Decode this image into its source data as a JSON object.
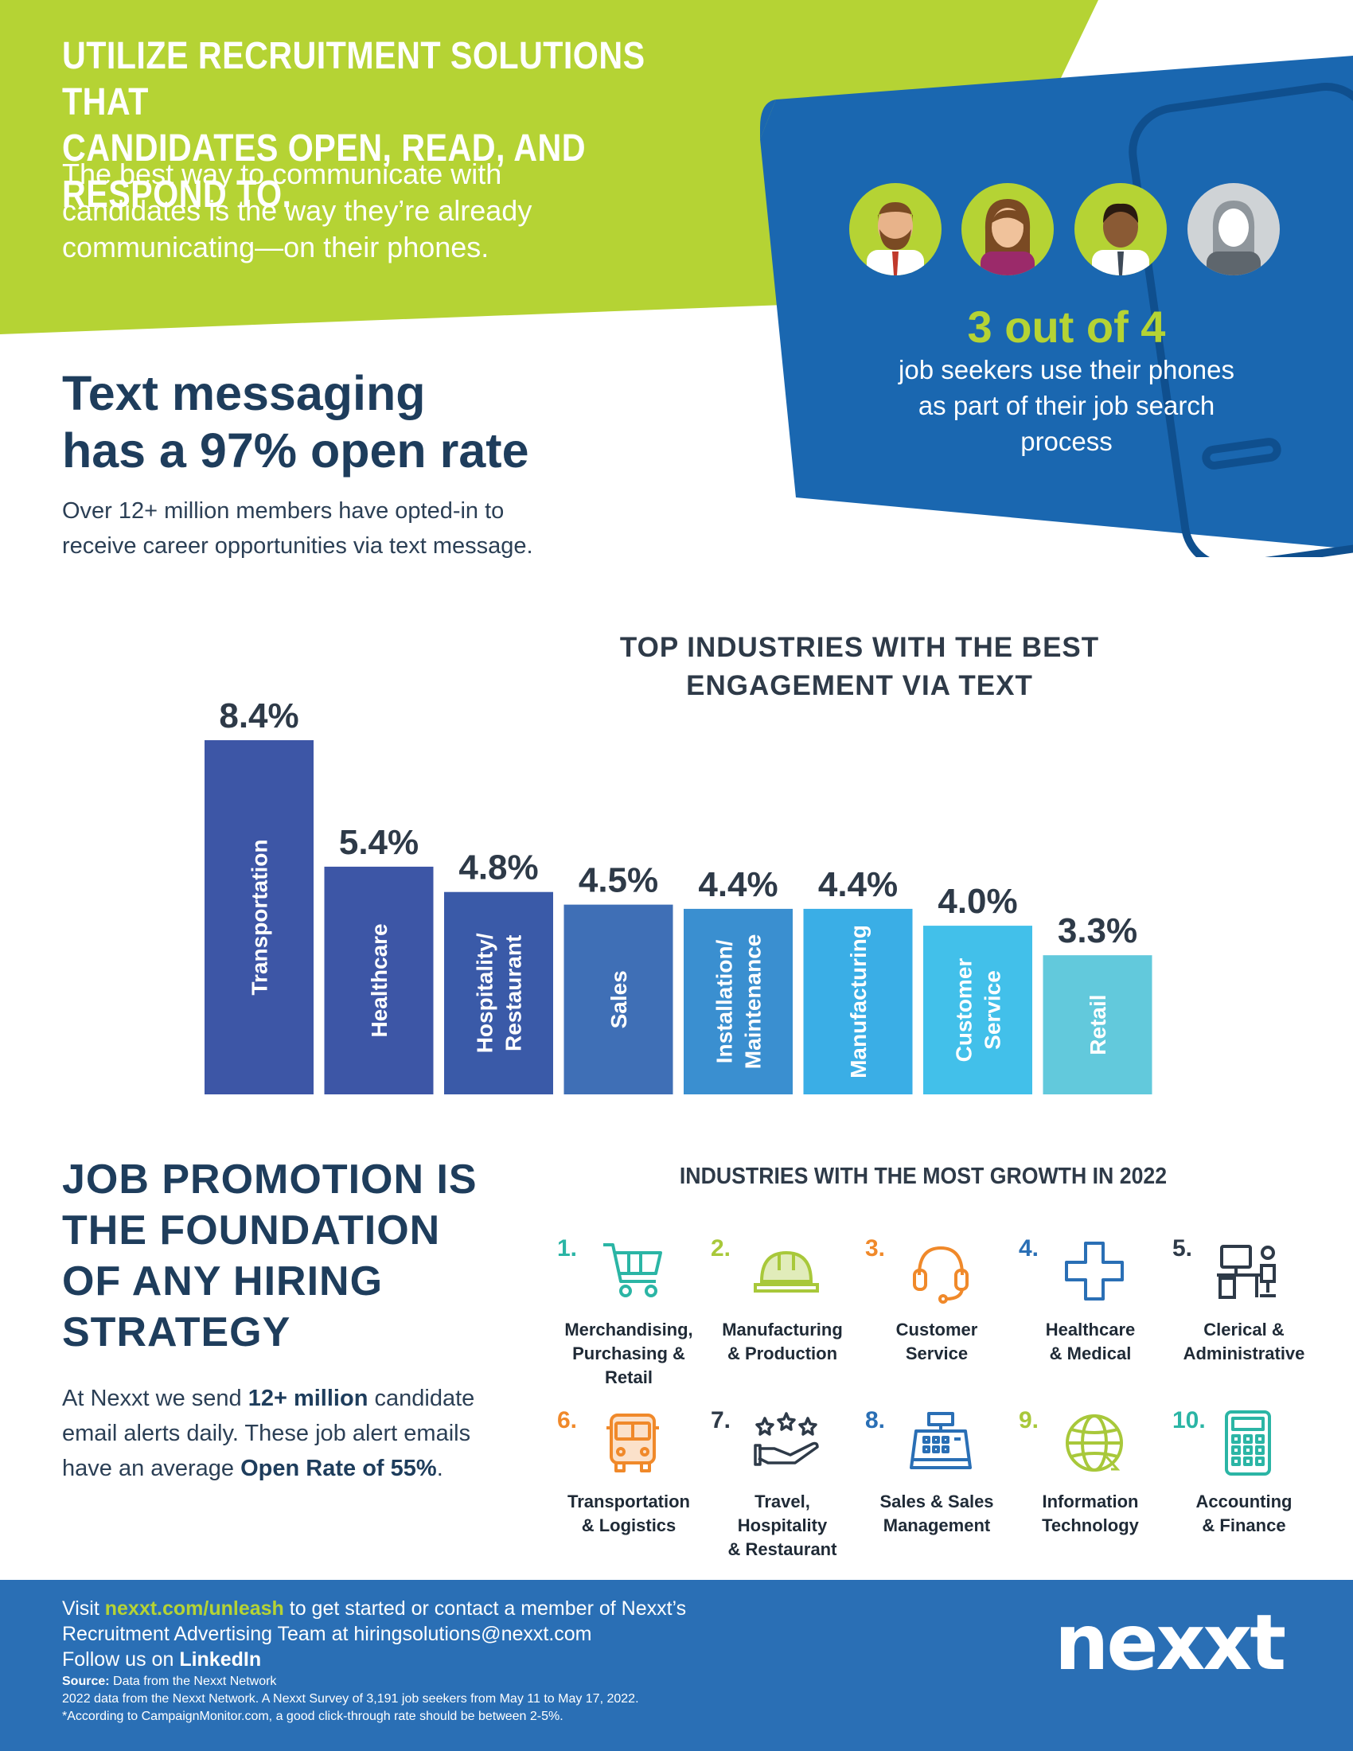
{
  "header": {
    "title_line1": "UTILIZE RECRUITMENT SOLUTIONS THAT",
    "title_line2": "CANDIDATES OPEN, READ, AND RESPOND TO.",
    "subtitle_line1": "The best way to communicate with",
    "subtitle_line2": "candidates is the way they’re already",
    "subtitle_line3": "communicating—on their phones."
  },
  "phone_card": {
    "stat": "3 out of 4",
    "text_line1": "job seekers use their phones",
    "text_line2": "as part of their job search",
    "text_line3": "process"
  },
  "text_section": {
    "heading_line1": "Text messaging",
    "heading_line2": "has a 97% open rate",
    "body_line1": "Over 12+ million members have opted-in to",
    "body_line2": "receive career opportunities via text message."
  },
  "chart_data": {
    "type": "bar",
    "title_line1": "TOP INDUSTRIES WITH THE BEST",
    "title_line2": "ENGAGEMENT VIA TEXT",
    "categories": [
      "Transportation",
      "Healthcare",
      "Hospitality/ Restaurant",
      "Sales",
      "Installation/ Maintenance",
      "Manufacturing",
      "Customer Service",
      "Retail"
    ],
    "category_lines": [
      [
        "Transportation"
      ],
      [
        "Healthcare"
      ],
      [
        "Hospitality/",
        "Restaurant"
      ],
      [
        "Sales"
      ],
      [
        "Installation/",
        "Maintenance"
      ],
      [
        "Manufacturing"
      ],
      [
        "Customer",
        "Service"
      ],
      [
        "Retail"
      ]
    ],
    "values": [
      8.4,
      5.4,
      4.8,
      4.5,
      4.4,
      4.4,
      4.0,
      3.3
    ],
    "value_labels": [
      "8.4%",
      "5.4%",
      "4.8%",
      "4.5%",
      "4.4%",
      "4.4%",
      "4.0%",
      "3.3%"
    ],
    "colors": [
      "#3d56a6",
      "#3d56a6",
      "#3a5aa8",
      "#3f6fb6",
      "#3a8fd0",
      "#3aaee6",
      "#42c0ea",
      "#62c9dc"
    ],
    "ylim": [
      0,
      8.4
    ],
    "grid": false,
    "legend": "none"
  },
  "job_promotion": {
    "heading_line1": "JOB PROMOTION IS",
    "heading_line2": "THE FOUNDATION",
    "heading_line3": "OF ANY HIRING",
    "heading_line4": "STRATEGY",
    "body_pre": "At Nexxt we send",
    "body_bold1": "12+ million",
    "body_mid": "candidate email alerts daily. These job alert emails have an average",
    "body_bold2": "Open Rate of 55%",
    "body_end": "."
  },
  "growth": {
    "title": "INDUSTRIES WITH THE MOST GROWTH IN 2022",
    "items": [
      {
        "num": "1.",
        "lines": [
          "Merchandising,",
          "Purchasing &",
          "Retail"
        ],
        "icon": "shopping-cart-icon",
        "color": "#2bb5a5"
      },
      {
        "num": "2.",
        "lines": [
          "Manufacturing",
          "& Production"
        ],
        "icon": "hard-hat-icon",
        "color": "#a8c83a"
      },
      {
        "num": "3.",
        "lines": [
          "Customer",
          "Service"
        ],
        "icon": "headset-icon",
        "color": "#f0892a"
      },
      {
        "num": "4.",
        "lines": [
          "Healthcare",
          "& Medical"
        ],
        "icon": "medical-cross-icon",
        "color": "#2a6fb5"
      },
      {
        "num": "5.",
        "lines": [
          "Clerical &",
          "Administrative"
        ],
        "icon": "office-desk-icon",
        "color": "#2e3a48"
      },
      {
        "num": "6.",
        "lines": [
          "Transportation",
          "& Logistics"
        ],
        "icon": "bus-icon",
        "color": "#f0892a"
      },
      {
        "num": "7.",
        "lines": [
          "Travel,",
          "Hospitality",
          "& Restaurant"
        ],
        "icon": "stars-hand-icon",
        "color": "#2e3a48"
      },
      {
        "num": "8.",
        "lines": [
          "Sales & Sales",
          "Management"
        ],
        "icon": "cash-register-icon",
        "color": "#2a6fb5"
      },
      {
        "num": "9.",
        "lines": [
          "Information",
          "Technology"
        ],
        "icon": "globe-icon",
        "color": "#a8c83a"
      },
      {
        "num": "10.",
        "lines": [
          "Accounting",
          "& Finance"
        ],
        "icon": "calculator-icon",
        "color": "#2bb5a5"
      }
    ]
  },
  "footer": {
    "visit_pre": "Visit",
    "visit_link": "nexxt.com/unleash",
    "visit_post": "to get started or contact a member of Nexxt’s",
    "line2": "Recruitment Advertising Team at hiringsolutions@nexxt.com",
    "follow_pre": "Follow us on",
    "follow_link": "LinkedIn",
    "source_label": "Source:",
    "source_text": "Data from the Nexxt Network",
    "note1": "2022 data from the Nexxt Network. A Nexxt Survey of 3,191 job seekers from May 11 to May 17, 2022.",
    "note2": "*According to CampaignMonitor.com, a good click-through rate should be between 2-5%.",
    "logo": "nexxt"
  },
  "colors": {
    "green": "#b5d334",
    "blue": "#1a67b0",
    "navy": "#1e3d5c",
    "footer": "#2a6fb5"
  }
}
